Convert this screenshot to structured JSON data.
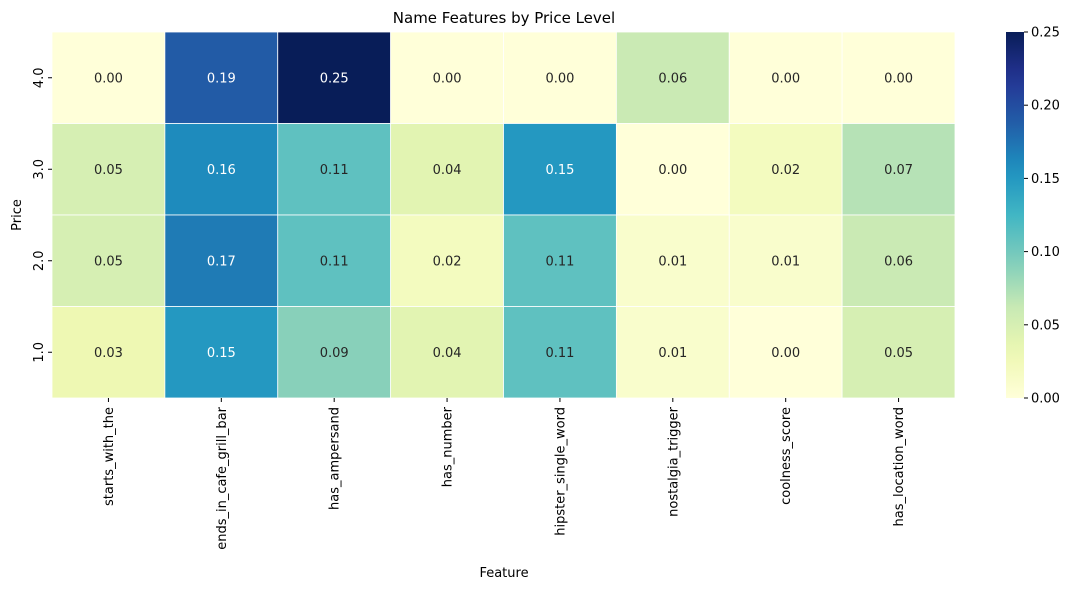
{
  "chart_data": {
    "type": "heatmap",
    "title": "Name Features by Price Level",
    "xlabel": "Feature",
    "ylabel": "Price",
    "x_categories": [
      "starts_with_the",
      "ends_in_cafe_grill_bar",
      "has_ampersand",
      "has_number",
      "hipster_single_word",
      "nostalgia_trigger",
      "coolness_score",
      "has_location_word"
    ],
    "y_categories": [
      "4.0",
      "3.0",
      "2.0",
      "1.0"
    ],
    "values": [
      [
        0.0,
        0.19,
        0.25,
        0.0,
        0.0,
        0.06,
        0.0,
        0.0
      ],
      [
        0.05,
        0.16,
        0.11,
        0.04,
        0.15,
        0.0,
        0.02,
        0.07
      ],
      [
        0.05,
        0.17,
        0.11,
        0.02,
        0.11,
        0.01,
        0.01,
        0.06
      ],
      [
        0.03,
        0.15,
        0.09,
        0.04,
        0.11,
        0.01,
        0.0,
        0.05
      ]
    ],
    "colorbar": {
      "range": [
        0,
        0.25
      ],
      "ticks": [
        "0.00",
        "0.05",
        "0.10",
        "0.15",
        "0.20",
        "0.25"
      ],
      "colormap": "YlGnBu"
    }
  }
}
